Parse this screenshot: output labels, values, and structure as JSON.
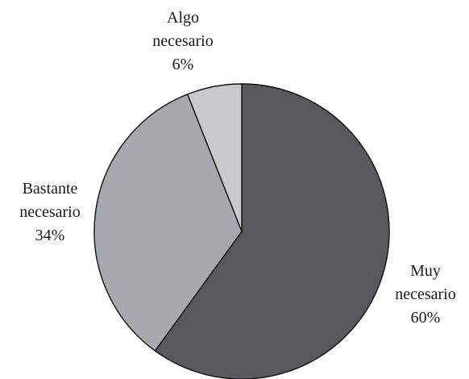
{
  "chart_data": {
    "type": "pie",
    "title": "",
    "start": "12 o'clock",
    "direction": "clockwise",
    "slices": [
      {
        "name": "Muy necesario",
        "label_lines": [
          "Muy",
          "necesario",
          "60%"
        ],
        "value": 60,
        "color": "#58595b"
      },
      {
        "name": "Bastante necesario",
        "label_lines": [
          "Bastante",
          "necesario",
          "34%"
        ],
        "value": 34,
        "color": "#a7a9ac"
      },
      {
        "name": "Algo necesario",
        "label_lines": [
          "Algo",
          "necesario",
          "6%"
        ],
        "value": 6,
        "color": "#c9cacc"
      }
    ]
  }
}
